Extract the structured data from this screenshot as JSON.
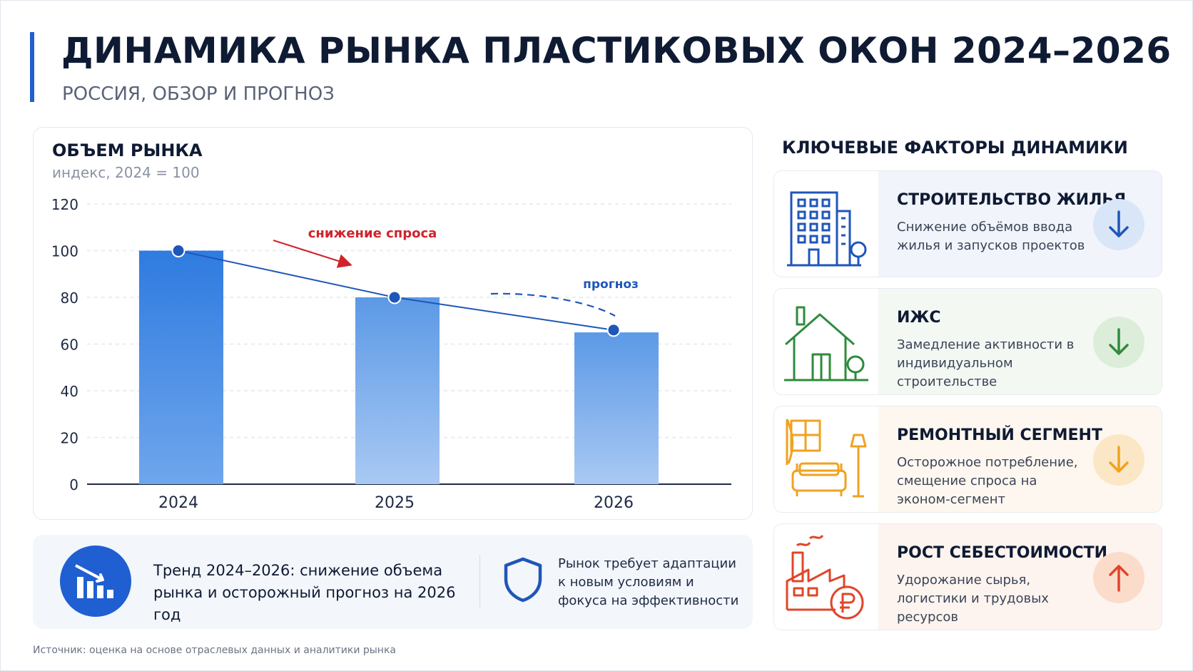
{
  "header": {
    "title": "ДИНАМИКА РЫНКА ПЛАСТИКОВЫХ ОКОН 2024–2026",
    "subtitle": "РОССИЯ, ОБЗОР И ПРОГНОЗ"
  },
  "chart_data": {
    "type": "bar",
    "title": "ОБЪЕМ РЫНКА",
    "subtitle": "индекс, 2024 = 100",
    "categories": [
      "2024",
      "2025",
      "2026"
    ],
    "values": [
      100,
      80,
      65
    ],
    "ylim": [
      0,
      120
    ],
    "yticks": [
      0,
      20,
      40,
      60,
      80,
      100,
      120
    ],
    "grid": true,
    "trend_line": [
      100,
      80,
      66
    ],
    "annotations": {
      "decline": "снижение спроса",
      "forecast": "прогноз"
    },
    "colors": {
      "bar_top": "#2f7be0",
      "bar_bottom": "#a9c9f3",
      "line": "#1f56b8",
      "decline": "#d0232b",
      "forecast": "#1f56b8"
    }
  },
  "summary": {
    "trend_text": "Тренд 2024–2026: снижение объема рынка и осторожный прогноз на 2026 год",
    "adapt_text": "Рынок требует адаптации к новым условиям и фокуса на эффективности"
  },
  "source": "Источник: оценка на основе отраслевых данных и аналитики рынка",
  "factors": {
    "title": "КЛЮЧЕВЫЕ ФАКТОРЫ ДИНАМИКИ",
    "items": [
      {
        "title": "СТРОИТЕЛЬСТВО ЖИЛЬЯ",
        "desc": "Снижение объёмов ввода жилья и запусков проектов",
        "icon": "apartment-building-icon",
        "direction": "down",
        "color": "#1f56b8",
        "bg": "#f1f5fb",
        "circle": "#d9e6f7"
      },
      {
        "title": "ИЖС",
        "desc": "Замедление активности в индивидуальном строительстве",
        "icon": "house-icon",
        "direction": "down",
        "color": "#2e8b3e",
        "bg": "#f3f8f3",
        "circle": "#dcedd9"
      },
      {
        "title": "РЕМОНТНЫЙ СЕГМЕНТ",
        "desc": "Осторожное потребление, смещение спроса на эконом-сегмент",
        "icon": "interior-sofa-icon",
        "direction": "down",
        "color": "#f0a21f",
        "bg": "#fdf7ef",
        "circle": "#fbe7c6"
      },
      {
        "title": "РОСТ СЕБЕСТОИМОСТИ",
        "desc": "Удорожание сырья, логистики и трудовых ресурсов",
        "icon": "factory-ruble-icon",
        "direction": "up",
        "color": "#e1452a",
        "bg": "#fdf4ef",
        "circle": "#fbdcca"
      }
    ]
  }
}
